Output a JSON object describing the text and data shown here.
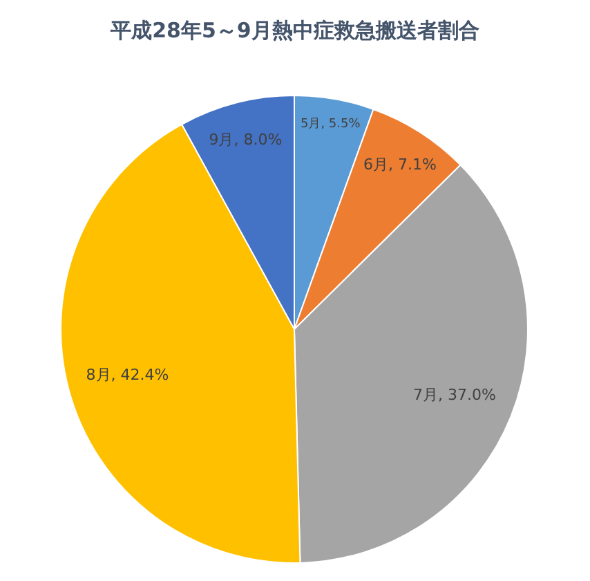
{
  "chart_data": {
    "type": "pie",
    "title": "平成28年5～9月熱中症救急搬送者割合",
    "categories": [
      "5月",
      "6月",
      "7月",
      "8月",
      "9月"
    ],
    "values": [
      5.5,
      7.1,
      37.0,
      42.4,
      8.0
    ],
    "value_labels": [
      "5.5%",
      "7.1%",
      "37.0%",
      "42.4%",
      "8.0%"
    ],
    "colors": [
      "#5b9bd5",
      "#ed7d31",
      "#a5a5a5",
      "#ffc000",
      "#4472c4"
    ]
  }
}
